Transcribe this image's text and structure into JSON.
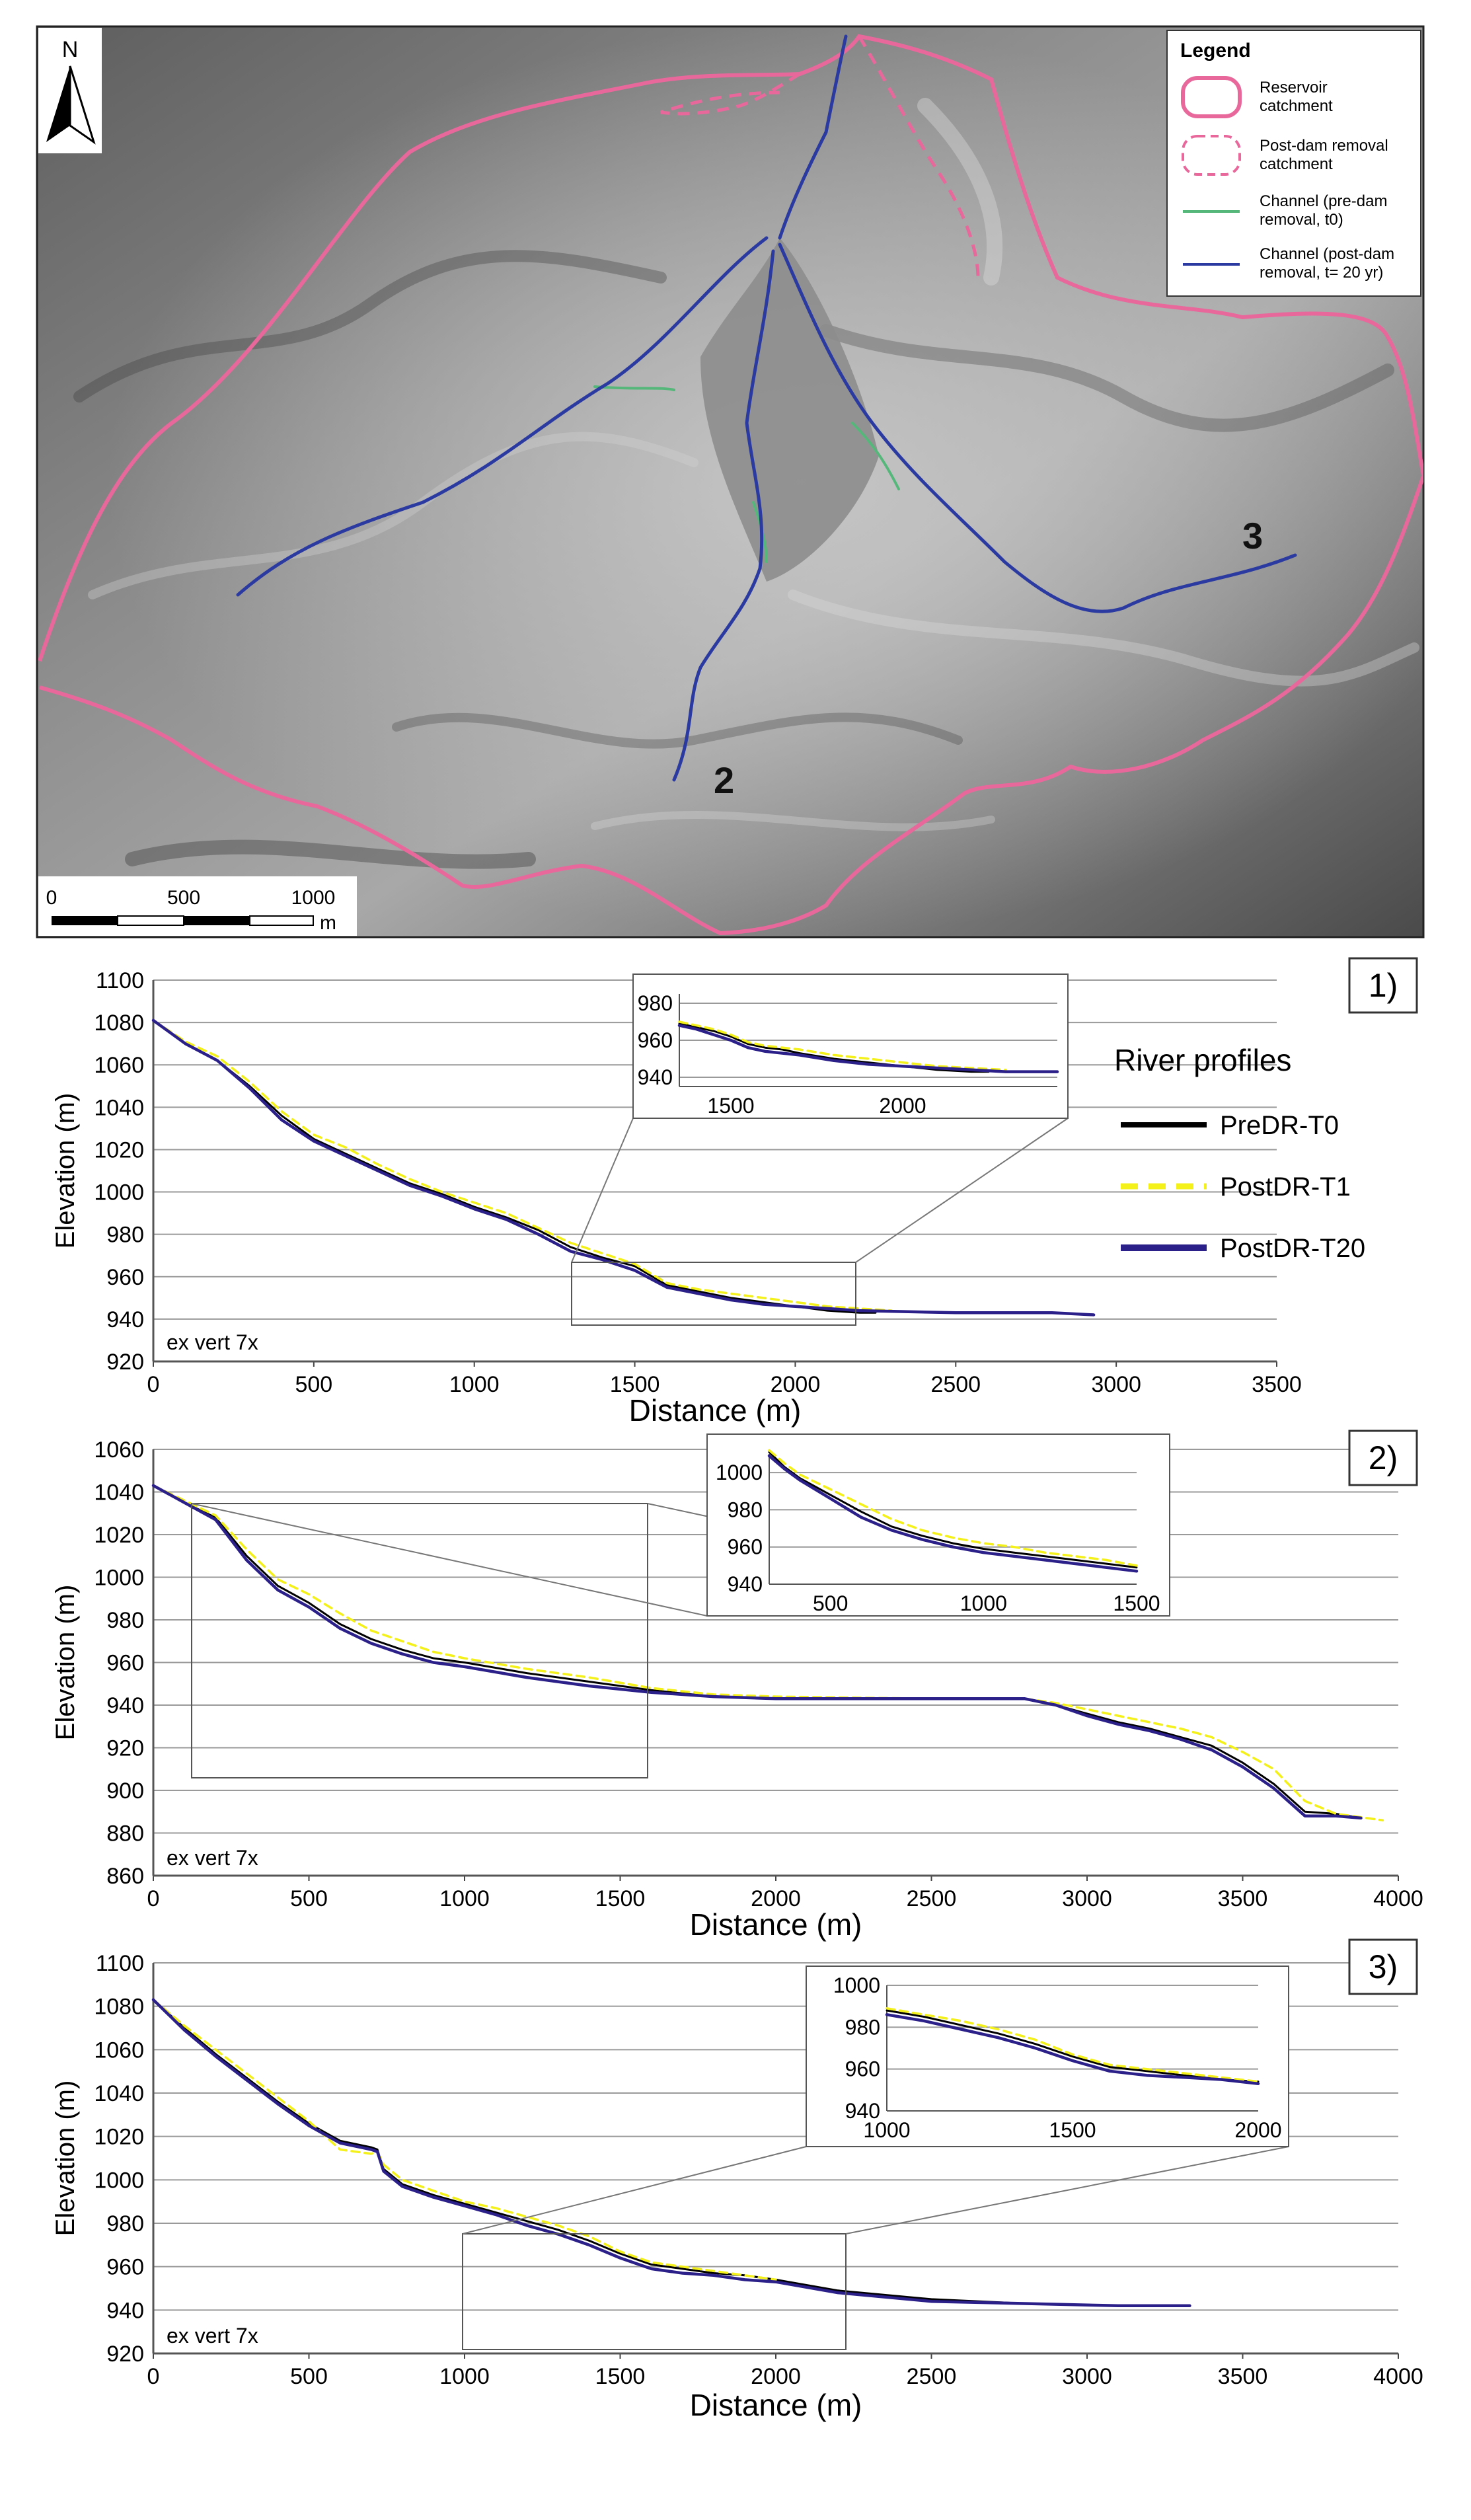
{
  "map": {
    "north_label": "N",
    "legend": {
      "title": "Legend",
      "items": [
        {
          "label_lines": [
            "Reservoir",
            "catchment"
          ],
          "color": "#e8689c",
          "style": "solid-shape"
        },
        {
          "label_lines": [
            "Post-dam removal",
            "catchment"
          ],
          "color": "#e8689c",
          "style": "dashed-shape"
        },
        {
          "label_lines": [
            "Channel (pre-dam",
            "removal, t0)"
          ],
          "color": "#55b87a",
          "style": "line"
        },
        {
          "label_lines": [
            "Channel (post-dam",
            "removal, t= 20 yr)"
          ],
          "color": "#2a3aa0",
          "style": "line"
        }
      ]
    },
    "channel_labels": [
      "2",
      "3"
    ],
    "scale_bar": {
      "ticks": [
        "0",
        "500",
        "1000"
      ],
      "unit": "m"
    }
  },
  "profiles_legend": {
    "title": "River profiles",
    "items": [
      {
        "label": "PreDR-T0",
        "color": "#000000",
        "style": "solid"
      },
      {
        "label": "PostDR-T1",
        "color": "#f3f01a",
        "style": "dashed"
      },
      {
        "label": "PostDR-T20",
        "color": "#2b1f8a",
        "style": "solid-thick"
      }
    ]
  },
  "chart_data": [
    {
      "type": "line",
      "panel_label": "1)",
      "xlabel": "Distance (m)",
      "ylabel": "Elevation (m)",
      "annotation": "ex vert 7x",
      "xlim": [
        0,
        3500
      ],
      "ylim": [
        920,
        1100
      ],
      "xticks": [
        0,
        500,
        1000,
        1500,
        2000,
        2500,
        3000,
        3500
      ],
      "yticks": [
        920,
        940,
        960,
        980,
        1000,
        1020,
        1040,
        1060,
        1080,
        1100
      ],
      "grid": true,
      "series": [
        {
          "name": "PreDR-T0",
          "x": [
            0,
            100,
            200,
            300,
            400,
            500,
            600,
            700,
            800,
            900,
            1000,
            1100,
            1200,
            1300,
            1400,
            1500,
            1600,
            1700,
            1800,
            1900,
            2000,
            2100,
            2200,
            2250
          ],
          "y": [
            1081,
            1070,
            1062,
            1050,
            1036,
            1025,
            1018,
            1011,
            1004,
            999,
            993,
            988,
            982,
            974,
            969,
            965,
            956,
            953,
            950,
            948,
            946,
            944,
            943,
            943
          ]
        },
        {
          "name": "PostDR-T1",
          "x": [
            0,
            100,
            200,
            300,
            400,
            500,
            600,
            700,
            800,
            900,
            1000,
            1100,
            1200,
            1300,
            1400,
            1500,
            1600,
            1700,
            1800,
            1900,
            2000,
            2100,
            2200,
            2300
          ],
          "y": [
            1081,
            1071,
            1064,
            1052,
            1038,
            1027,
            1021,
            1013,
            1006,
            1000,
            995,
            990,
            983,
            976,
            971,
            966,
            957,
            954,
            952,
            950,
            948,
            946,
            945,
            944
          ]
        },
        {
          "name": "PostDR-T20",
          "x": [
            0,
            100,
            200,
            300,
            400,
            500,
            600,
            700,
            800,
            900,
            1000,
            1100,
            1200,
            1300,
            1400,
            1500,
            1600,
            1700,
            1800,
            1900,
            2000,
            2200,
            2500,
            2800,
            2930
          ],
          "y": [
            1081,
            1070,
            1062,
            1049,
            1034,
            1024,
            1017,
            1010,
            1003,
            998,
            992,
            987,
            980,
            972,
            968,
            963,
            955,
            952,
            949,
            947,
            946,
            944,
            943,
            943,
            942
          ]
        }
      ],
      "inset": {
        "xlim": [
          1350,
          2450
        ],
        "ylim": [
          935,
          985
        ],
        "xticks": [
          1500,
          2000
        ],
        "yticks": [
          940,
          960,
          980
        ],
        "series": [
          {
            "name": "PreDR-T0",
            "x": [
              1350,
              1400,
              1450,
              1500,
              1550,
              1600,
              1650,
              1700,
              1800,
              1900,
              2000,
              2100,
              2200,
              2250
            ],
            "y": [
              969,
              967,
              965,
              962,
              958,
              956,
              955,
              953,
              950,
              948,
              946,
              944,
              943,
              943
            ]
          },
          {
            "name": "PostDR-T1",
            "x": [
              1350,
              1400,
              1450,
              1500,
              1550,
              1600,
              1700,
              1800,
              1900,
              2000,
              2100,
              2200,
              2300
            ],
            "y": [
              970,
              968,
              966,
              963,
              959,
              957,
              955,
              952,
              950,
              948,
              946,
              945,
              944
            ]
          },
          {
            "name": "PostDR-T20",
            "x": [
              1350,
              1400,
              1450,
              1500,
              1550,
              1600,
              1700,
              1800,
              1900,
              2000,
              2100,
              2200,
              2300,
              2400,
              2450
            ],
            "y": [
              968,
              966,
              963,
              960,
              956,
              954,
              952,
              949,
              947,
              946,
              945,
              944,
              943,
              943,
              943
            ]
          }
        ]
      }
    },
    {
      "type": "line",
      "panel_label": "2)",
      "xlabel": "Distance (m)",
      "ylabel": "Elevation (m)",
      "annotation": "ex vert 7x",
      "xlim": [
        0,
        4000
      ],
      "ylim": [
        860,
        1060
      ],
      "xticks": [
        0,
        500,
        1000,
        1500,
        2000,
        2500,
        3000,
        3500,
        4000
      ],
      "yticks": [
        860,
        880,
        900,
        920,
        940,
        960,
        980,
        1000,
        1020,
        1040,
        1060
      ],
      "grid": true,
      "series": [
        {
          "name": "PreDR-T0",
          "x": [
            0,
            100,
            200,
            300,
            400,
            500,
            600,
            700,
            800,
            900,
            1000,
            1200,
            1400,
            1600,
            1800,
            2000,
            2500,
            2800,
            2900,
            3000,
            3100,
            3200,
            3300,
            3400,
            3500,
            3600,
            3700,
            3800,
            3880
          ],
          "y": [
            1043,
            1035,
            1028,
            1010,
            996,
            988,
            978,
            971,
            966,
            962,
            960,
            955,
            951,
            947,
            944,
            943,
            943,
            943,
            940,
            936,
            932,
            929,
            925,
            921,
            913,
            903,
            890,
            889,
            887
          ]
        },
        {
          "name": "PostDR-T1",
          "x": [
            0,
            100,
            200,
            300,
            400,
            500,
            600,
            700,
            800,
            900,
            1000,
            1200,
            1400,
            1600,
            1800,
            2000,
            2500,
            2800,
            2900,
            3000,
            3100,
            3200,
            3300,
            3400,
            3500,
            3600,
            3700,
            3800,
            3950
          ],
          "y": [
            1043,
            1036,
            1029,
            1013,
            999,
            992,
            983,
            975,
            970,
            965,
            962,
            957,
            953,
            948,
            945,
            944,
            943,
            943,
            941,
            938,
            935,
            932,
            929,
            925,
            918,
            910,
            895,
            889,
            886
          ]
        },
        {
          "name": "PostDR-T20",
          "x": [
            0,
            100,
            200,
            300,
            400,
            500,
            600,
            700,
            800,
            900,
            1000,
            1200,
            1400,
            1600,
            1800,
            2000,
            2500,
            2800,
            2900,
            3000,
            3100,
            3200,
            3300,
            3400,
            3500,
            3600,
            3700,
            3800,
            3880
          ],
          "y": [
            1043,
            1035,
            1027,
            1008,
            994,
            986,
            976,
            969,
            964,
            960,
            958,
            953,
            949,
            946,
            944,
            943,
            943,
            943,
            940,
            935,
            931,
            928,
            924,
            919,
            911,
            901,
            888,
            888,
            887
          ]
        }
      ],
      "inset": {
        "xlim": [
          300,
          1500
        ],
        "ylim": [
          940,
          1010
        ],
        "xticks": [
          500,
          1000,
          1500
        ],
        "yticks": [
          940,
          960,
          980,
          1000
        ],
        "series": [
          {
            "name": "PreDR-T0",
            "x": [
              300,
              350,
              400,
              500,
              600,
              700,
              800,
              900,
              1000,
              1100,
              1200,
              1300,
              1400,
              1500
            ],
            "y": [
              1011,
              1003,
              997,
              988,
              979,
              971,
              966,
              962,
              959,
              957,
              955,
              953,
              951,
              949
            ]
          },
          {
            "name": "PostDR-T1",
            "x": [
              300,
              350,
              400,
              500,
              600,
              700,
              800,
              900,
              1000,
              1100,
              1200,
              1300,
              1400,
              1500
            ],
            "y": [
              1012,
              1005,
              999,
              991,
              983,
              975,
              969,
              965,
              962,
              960,
              957,
              955,
              953,
              950
            ]
          },
          {
            "name": "PostDR-T20",
            "x": [
              300,
              350,
              400,
              500,
              600,
              700,
              800,
              900,
              1000,
              1100,
              1200,
              1300,
              1400,
              1500
            ],
            "y": [
              1009,
              1002,
              996,
              986,
              976,
              969,
              964,
              960,
              957,
              955,
              953,
              951,
              949,
              947
            ]
          }
        ]
      }
    },
    {
      "type": "line",
      "panel_label": "3)",
      "xlabel": "Distance (m)",
      "ylabel": "Elevation (m)",
      "annotation": "ex vert 7x",
      "xlim": [
        0,
        4000
      ],
      "ylim": [
        920,
        1100
      ],
      "xticks": [
        0,
        500,
        1000,
        1500,
        2000,
        2500,
        3000,
        3500,
        4000
      ],
      "yticks": [
        920,
        940,
        960,
        980,
        1000,
        1020,
        1040,
        1060,
        1080,
        1100
      ],
      "grid": true,
      "series": [
        {
          "name": "PreDR-T0",
          "x": [
            0,
            100,
            200,
            300,
            400,
            500,
            600,
            700,
            720,
            740,
            800,
            900,
            1000,
            1100,
            1200,
            1300,
            1400,
            1500,
            1600,
            1700,
            1800,
            1900,
            2000,
            2200,
            2500,
            2800,
            3100,
            3330
          ],
          "y": [
            1083,
            1070,
            1058,
            1047,
            1036,
            1026,
            1018,
            1015,
            1014,
            1005,
            998,
            993,
            989,
            985,
            981,
            977,
            972,
            966,
            961,
            959,
            957,
            956,
            954,
            949,
            945,
            943,
            942,
            942
          ]
        },
        {
          "name": "PostDR-T1",
          "x": [
            0,
            100,
            200,
            300,
            400,
            500,
            600,
            700,
            720,
            740,
            800,
            900,
            1000,
            1100,
            1200,
            1300,
            1400,
            1500,
            1600,
            1700,
            1800,
            1900,
            2000
          ],
          "y": [
            1083,
            1071,
            1060,
            1049,
            1038,
            1027,
            1014,
            1012,
            1013,
            1007,
            1000,
            995,
            990,
            987,
            983,
            979,
            974,
            967,
            962,
            960,
            958,
            956,
            954
          ]
        },
        {
          "name": "PostDR-T20",
          "x": [
            0,
            100,
            200,
            300,
            400,
            500,
            600,
            700,
            720,
            740,
            800,
            900,
            1000,
            1100,
            1200,
            1300,
            1400,
            1500,
            1600,
            1700,
            1800,
            1900,
            2000,
            2200,
            2500,
            2800,
            3100,
            3330
          ],
          "y": [
            1083,
            1069,
            1057,
            1046,
            1035,
            1025,
            1017,
            1014,
            1013,
            1004,
            997,
            992,
            988,
            984,
            979,
            975,
            970,
            964,
            959,
            957,
            956,
            954,
            953,
            948,
            944,
            943,
            942,
            942
          ]
        }
      ],
      "inset": {
        "xlim": [
          1000,
          2000
        ],
        "ylim": [
          940,
          1000
        ],
        "xticks": [
          1000,
          1500,
          2000
        ],
        "yticks": [
          940,
          960,
          980,
          1000
        ],
        "series": [
          {
            "name": "PreDR-T0",
            "x": [
              1000,
              1100,
              1200,
              1300,
              1400,
              1500,
              1600,
              1700,
              1750,
              1800,
              1850,
              1900,
              2000
            ],
            "y": [
              988,
              985,
              981,
              977,
              972,
              966,
              961,
              959,
              958,
              957,
              956,
              955,
              954
            ]
          },
          {
            "name": "PostDR-T1",
            "x": [
              1000,
              1100,
              1200,
              1300,
              1400,
              1500,
              1600,
              1700,
              1800,
              1900,
              2000
            ],
            "y": [
              989,
              986,
              983,
              979,
              974,
              967,
              962,
              960,
              958,
              956,
              954
            ]
          },
          {
            "name": "PostDR-T20",
            "x": [
              1000,
              1100,
              1200,
              1300,
              1400,
              1500,
              1600,
              1700,
              1800,
              1900,
              2000
            ],
            "y": [
              986,
              983,
              979,
              975,
              970,
              964,
              959,
              957,
              956,
              955,
              953
            ]
          }
        ]
      }
    }
  ]
}
